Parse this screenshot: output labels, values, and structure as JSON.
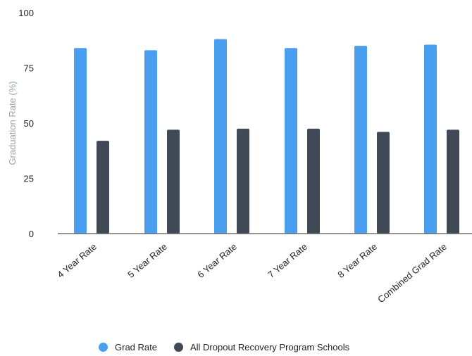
{
  "chart_data": {
    "type": "bar",
    "title": "",
    "xlabel": "",
    "ylabel": "Graduation Rate (%)",
    "ylim": [
      0,
      100
    ],
    "yticks": [
      0,
      25,
      50,
      75,
      100
    ],
    "categories": [
      "4 Year Rate",
      "5 Year Rate",
      "6 Year Rate",
      "7 Year Rate",
      "8 Year Rate",
      "Combined Grad Rate"
    ],
    "series": [
      {
        "name": "Grad Rate",
        "color": "#4a9ef0",
        "values": [
          84,
          83,
          88,
          84,
          85,
          85.5
        ]
      },
      {
        "name": "All Dropout Recovery Program Schools",
        "color": "#3f4a56",
        "values": [
          42,
          47,
          47.5,
          47.5,
          46,
          47
        ]
      }
    ],
    "grid": false,
    "legend_position": "bottom"
  }
}
